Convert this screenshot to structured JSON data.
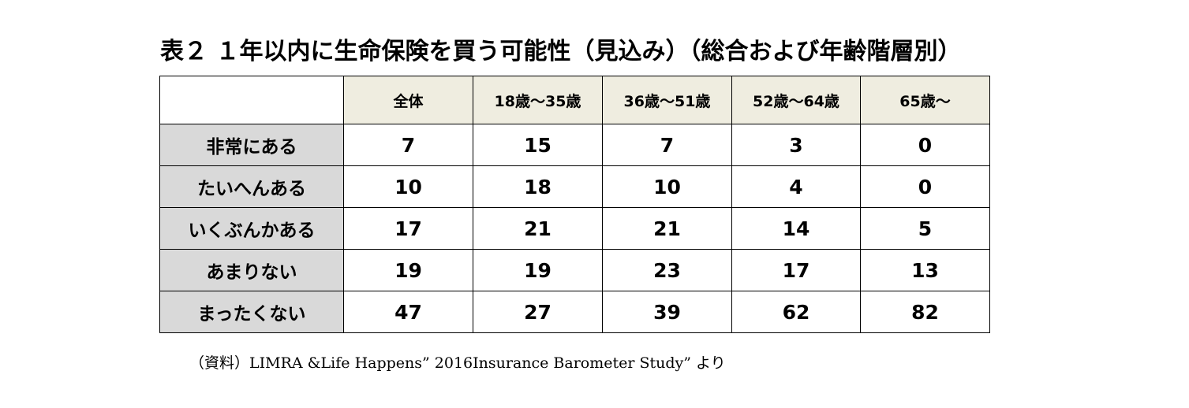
{
  "title": "表２ １年以内に生命保険を買う可能性（見込み）（総合および年齢階層別）",
  "table": {
    "columns": [
      "全体",
      "18歳〜35歳",
      "36歳〜51歳",
      "52歳〜64歳",
      "65歳〜"
    ],
    "rows": [
      {
        "label": "非常にある",
        "values": [
          "7",
          "15",
          "7",
          "3",
          "0"
        ]
      },
      {
        "label": "たいへんある",
        "values": [
          "10",
          "18",
          "10",
          "4",
          "0"
        ]
      },
      {
        "label": "いくぶんかある",
        "values": [
          "17",
          "21",
          "21",
          "14",
          "5"
        ]
      },
      {
        "label": "あまりない",
        "values": [
          "19",
          "19",
          "23",
          "17",
          "13"
        ]
      },
      {
        "label": "まったくない",
        "values": [
          "47",
          "27",
          "39",
          "62",
          "82"
        ]
      }
    ]
  },
  "source": "（資料）LIMRA &Life Happens” 2016Insurance Barometer Study” より",
  "colors": {
    "header_bg": "#efede0",
    "row_label_bg": "#d9d9d9",
    "border": "#000000"
  }
}
